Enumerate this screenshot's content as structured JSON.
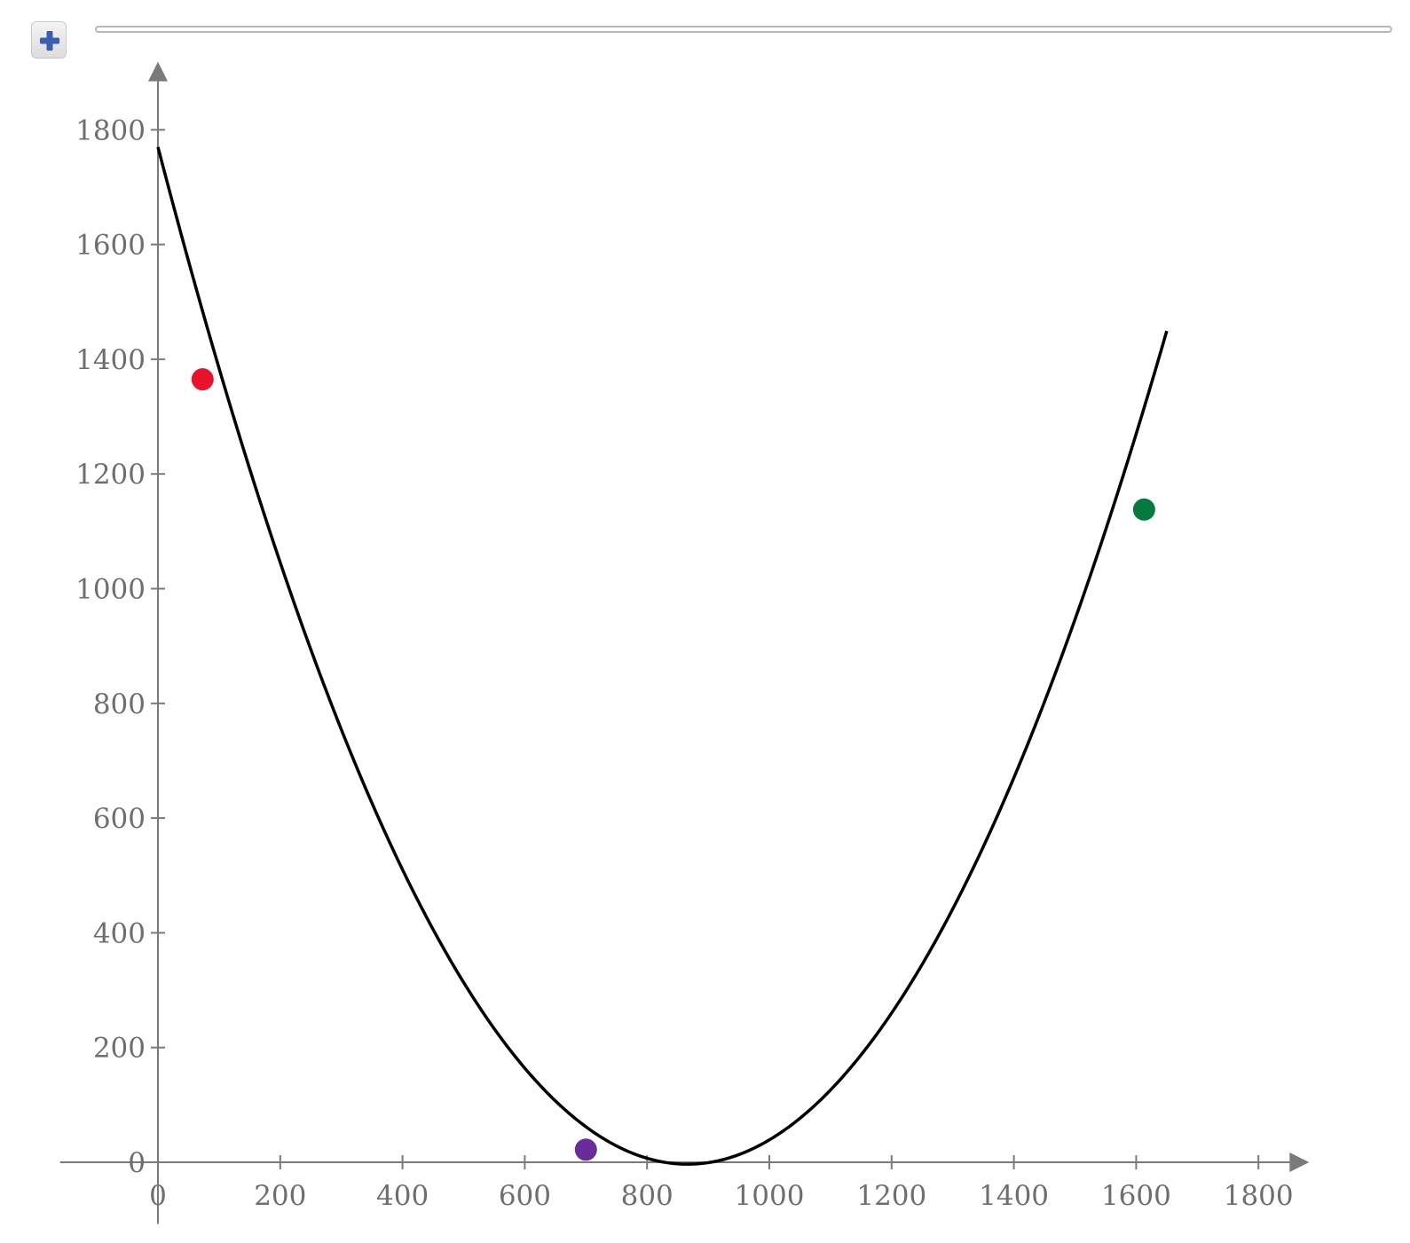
{
  "toolbar": {
    "add_icon": "plus-icon",
    "accent": "#3a5fb0"
  },
  "chart_data": {
    "type": "line",
    "title": "",
    "xlabel": "",
    "ylabel": "",
    "xlim": [
      -160,
      1880
    ],
    "ylim": [
      -100,
      1900
    ],
    "grid": false,
    "x_ticks": [
      0,
      200,
      400,
      600,
      800,
      1000,
      1200,
      1400,
      1600,
      1800
    ],
    "y_ticks": [
      0,
      200,
      400,
      600,
      800,
      1000,
      1200,
      1400,
      1600,
      1800
    ],
    "x_tick_labels": [
      "0",
      "200",
      "400",
      "600",
      "800",
      "1000",
      "1200",
      "1400",
      "1600",
      "1800"
    ],
    "y_tick_labels": [
      "0",
      "200",
      "400",
      "600",
      "800",
      "1000",
      "1200",
      "1400",
      "1600",
      "1800"
    ],
    "curve": {
      "color": "#000000",
      "x_range": [
        0,
        1650
      ],
      "coefficients": {
        "a": 0.002364,
        "b": -4.095,
        "c": 1770
      }
    },
    "points": [
      {
        "x": 73,
        "y": 1365,
        "color": "#e8132d"
      },
      {
        "x": 700,
        "y": 22,
        "color": "#6a2c9b"
      },
      {
        "x": 1613,
        "y": 1138,
        "color": "#047a3f"
      }
    ]
  }
}
